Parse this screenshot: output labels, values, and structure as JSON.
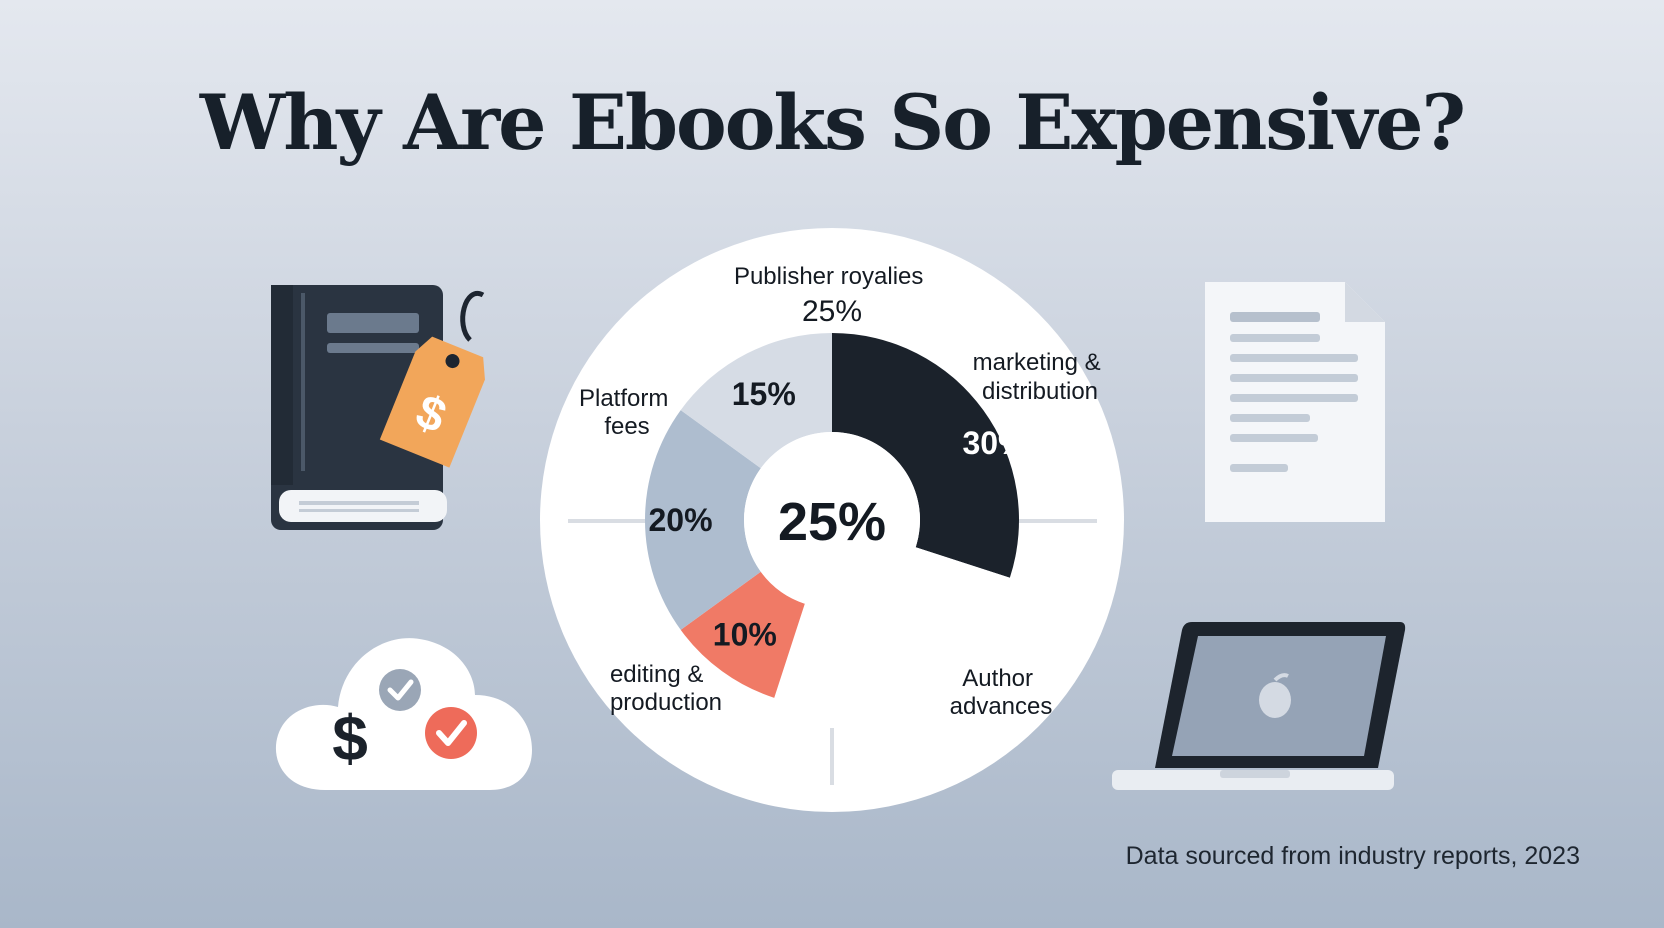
{
  "title": "Why Are Ebooks So Expensive?",
  "source": "Data sourced from industry reports, 2023",
  "colors": {
    "dark": "#1b222b",
    "light_gray": "#d6dce5",
    "blue_gray": "#aebdcf",
    "coral": "#f07a66",
    "white": "#ffffff"
  },
  "chart_data": {
    "type": "pie",
    "center_label": "25%",
    "slices": [
      {
        "label": "marketing & distribution",
        "label_lines": [
          "marketing &",
          "distribution"
        ],
        "value": 30,
        "display": "30%",
        "color": "#1b222b"
      },
      {
        "label": "Publisher royalies",
        "label_lines": [
          "Publisher royalies",
          "25%"
        ],
        "value": 25,
        "display": "",
        "color": "#ffffff"
      },
      {
        "label": "editing & production",
        "label_lines": [
          "editing &",
          "production"
        ],
        "value": 10,
        "display": "10%",
        "color": "#f07a66"
      },
      {
        "label": "Platform fees",
        "label_lines": [
          "Platform",
          "fees"
        ],
        "value": 20,
        "display": "20%",
        "color": "#aebdcf"
      },
      {
        "label": "",
        "label_lines": [],
        "value": 15,
        "display": "15%",
        "color": "#d6dce5"
      }
    ],
    "extra_labels": [
      {
        "lines": [
          "Author",
          "advances"
        ]
      }
    ]
  }
}
